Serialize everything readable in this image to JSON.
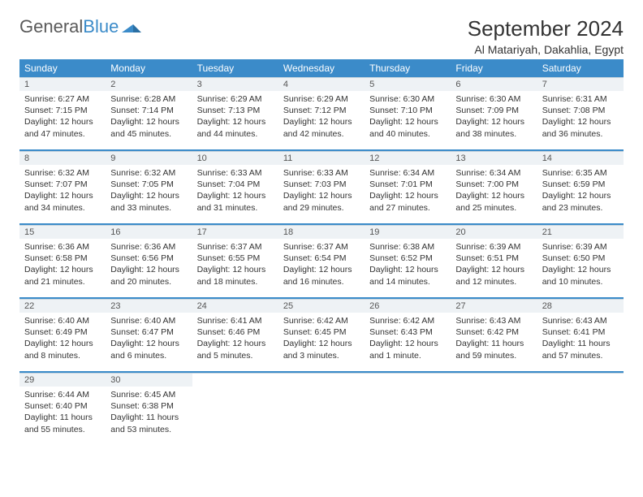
{
  "logo": {
    "part1": "General",
    "part2": "Blue"
  },
  "title": "September 2024",
  "subtitle": "Al Matariyah, Dakahlia, Egypt",
  "colors": {
    "header_bg": "#3b8bc9",
    "row_bg": "#eef2f5",
    "row_border": "#c7d4dd",
    "text": "#333333",
    "background": "#ffffff"
  },
  "days": [
    "Sunday",
    "Monday",
    "Tuesday",
    "Wednesday",
    "Thursday",
    "Friday",
    "Saturday"
  ],
  "weeks": [
    [
      {
        "n": "1",
        "sunrise": "Sunrise: 6:27 AM",
        "sunset": "Sunset: 7:15 PM",
        "dl1": "Daylight: 12 hours",
        "dl2": "and 47 minutes."
      },
      {
        "n": "2",
        "sunrise": "Sunrise: 6:28 AM",
        "sunset": "Sunset: 7:14 PM",
        "dl1": "Daylight: 12 hours",
        "dl2": "and 45 minutes."
      },
      {
        "n": "3",
        "sunrise": "Sunrise: 6:29 AM",
        "sunset": "Sunset: 7:13 PM",
        "dl1": "Daylight: 12 hours",
        "dl2": "and 44 minutes."
      },
      {
        "n": "4",
        "sunrise": "Sunrise: 6:29 AM",
        "sunset": "Sunset: 7:12 PM",
        "dl1": "Daylight: 12 hours",
        "dl2": "and 42 minutes."
      },
      {
        "n": "5",
        "sunrise": "Sunrise: 6:30 AM",
        "sunset": "Sunset: 7:10 PM",
        "dl1": "Daylight: 12 hours",
        "dl2": "and 40 minutes."
      },
      {
        "n": "6",
        "sunrise": "Sunrise: 6:30 AM",
        "sunset": "Sunset: 7:09 PM",
        "dl1": "Daylight: 12 hours",
        "dl2": "and 38 minutes."
      },
      {
        "n": "7",
        "sunrise": "Sunrise: 6:31 AM",
        "sunset": "Sunset: 7:08 PM",
        "dl1": "Daylight: 12 hours",
        "dl2": "and 36 minutes."
      }
    ],
    [
      {
        "n": "8",
        "sunrise": "Sunrise: 6:32 AM",
        "sunset": "Sunset: 7:07 PM",
        "dl1": "Daylight: 12 hours",
        "dl2": "and 34 minutes."
      },
      {
        "n": "9",
        "sunrise": "Sunrise: 6:32 AM",
        "sunset": "Sunset: 7:05 PM",
        "dl1": "Daylight: 12 hours",
        "dl2": "and 33 minutes."
      },
      {
        "n": "10",
        "sunrise": "Sunrise: 6:33 AM",
        "sunset": "Sunset: 7:04 PM",
        "dl1": "Daylight: 12 hours",
        "dl2": "and 31 minutes."
      },
      {
        "n": "11",
        "sunrise": "Sunrise: 6:33 AM",
        "sunset": "Sunset: 7:03 PM",
        "dl1": "Daylight: 12 hours",
        "dl2": "and 29 minutes."
      },
      {
        "n": "12",
        "sunrise": "Sunrise: 6:34 AM",
        "sunset": "Sunset: 7:01 PM",
        "dl1": "Daylight: 12 hours",
        "dl2": "and 27 minutes."
      },
      {
        "n": "13",
        "sunrise": "Sunrise: 6:34 AM",
        "sunset": "Sunset: 7:00 PM",
        "dl1": "Daylight: 12 hours",
        "dl2": "and 25 minutes."
      },
      {
        "n": "14",
        "sunrise": "Sunrise: 6:35 AM",
        "sunset": "Sunset: 6:59 PM",
        "dl1": "Daylight: 12 hours",
        "dl2": "and 23 minutes."
      }
    ],
    [
      {
        "n": "15",
        "sunrise": "Sunrise: 6:36 AM",
        "sunset": "Sunset: 6:58 PM",
        "dl1": "Daylight: 12 hours",
        "dl2": "and 21 minutes."
      },
      {
        "n": "16",
        "sunrise": "Sunrise: 6:36 AM",
        "sunset": "Sunset: 6:56 PM",
        "dl1": "Daylight: 12 hours",
        "dl2": "and 20 minutes."
      },
      {
        "n": "17",
        "sunrise": "Sunrise: 6:37 AM",
        "sunset": "Sunset: 6:55 PM",
        "dl1": "Daylight: 12 hours",
        "dl2": "and 18 minutes."
      },
      {
        "n": "18",
        "sunrise": "Sunrise: 6:37 AM",
        "sunset": "Sunset: 6:54 PM",
        "dl1": "Daylight: 12 hours",
        "dl2": "and 16 minutes."
      },
      {
        "n": "19",
        "sunrise": "Sunrise: 6:38 AM",
        "sunset": "Sunset: 6:52 PM",
        "dl1": "Daylight: 12 hours",
        "dl2": "and 14 minutes."
      },
      {
        "n": "20",
        "sunrise": "Sunrise: 6:39 AM",
        "sunset": "Sunset: 6:51 PM",
        "dl1": "Daylight: 12 hours",
        "dl2": "and 12 minutes."
      },
      {
        "n": "21",
        "sunrise": "Sunrise: 6:39 AM",
        "sunset": "Sunset: 6:50 PM",
        "dl1": "Daylight: 12 hours",
        "dl2": "and 10 minutes."
      }
    ],
    [
      {
        "n": "22",
        "sunrise": "Sunrise: 6:40 AM",
        "sunset": "Sunset: 6:49 PM",
        "dl1": "Daylight: 12 hours",
        "dl2": "and 8 minutes."
      },
      {
        "n": "23",
        "sunrise": "Sunrise: 6:40 AM",
        "sunset": "Sunset: 6:47 PM",
        "dl1": "Daylight: 12 hours",
        "dl2": "and 6 minutes."
      },
      {
        "n": "24",
        "sunrise": "Sunrise: 6:41 AM",
        "sunset": "Sunset: 6:46 PM",
        "dl1": "Daylight: 12 hours",
        "dl2": "and 5 minutes."
      },
      {
        "n": "25",
        "sunrise": "Sunrise: 6:42 AM",
        "sunset": "Sunset: 6:45 PM",
        "dl1": "Daylight: 12 hours",
        "dl2": "and 3 minutes."
      },
      {
        "n": "26",
        "sunrise": "Sunrise: 6:42 AM",
        "sunset": "Sunset: 6:43 PM",
        "dl1": "Daylight: 12 hours",
        "dl2": "and 1 minute."
      },
      {
        "n": "27",
        "sunrise": "Sunrise: 6:43 AM",
        "sunset": "Sunset: 6:42 PM",
        "dl1": "Daylight: 11 hours",
        "dl2": "and 59 minutes."
      },
      {
        "n": "28",
        "sunrise": "Sunrise: 6:43 AM",
        "sunset": "Sunset: 6:41 PM",
        "dl1": "Daylight: 11 hours",
        "dl2": "and 57 minutes."
      }
    ],
    [
      {
        "n": "29",
        "sunrise": "Sunrise: 6:44 AM",
        "sunset": "Sunset: 6:40 PM",
        "dl1": "Daylight: 11 hours",
        "dl2": "and 55 minutes."
      },
      {
        "n": "30",
        "sunrise": "Sunrise: 6:45 AM",
        "sunset": "Sunset: 6:38 PM",
        "dl1": "Daylight: 11 hours",
        "dl2": "and 53 minutes."
      },
      null,
      null,
      null,
      null,
      null
    ]
  ]
}
